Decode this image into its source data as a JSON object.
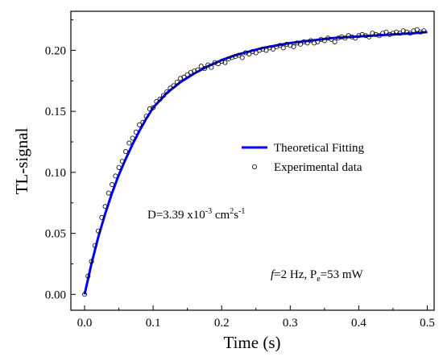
{
  "chart_data": {
    "type": "scatter",
    "xlabel": "Time (s)",
    "ylabel": "TL-signal",
    "xlim": [
      -0.02,
      0.51
    ],
    "ylim": [
      -0.013,
      0.232
    ],
    "x_ticks": [
      0.0,
      0.1,
      0.2,
      0.3,
      0.4,
      0.5
    ],
    "x_tick_labels": [
      "0.0",
      "0.1",
      "0.2",
      "0.3",
      "0.4",
      "0.5"
    ],
    "y_ticks": [
      0.0,
      0.05,
      0.1,
      0.15,
      0.2
    ],
    "y_tick_labels": [
      "0.00",
      "0.05",
      "0.10",
      "0.15",
      "0.20"
    ],
    "grid": false,
    "legend_position": "center-right",
    "series": [
      {
        "name": "Theoretical Fitting",
        "kind": "line",
        "color": "#0000ff",
        "x": [
          0.0,
          0.01,
          0.02,
          0.03,
          0.04,
          0.05,
          0.06,
          0.07,
          0.08,
          0.09,
          0.1,
          0.12,
          0.14,
          0.16,
          0.18,
          0.2,
          0.22,
          0.24,
          0.26,
          0.28,
          0.3,
          0.33,
          0.36,
          0.39,
          0.42,
          0.45,
          0.48,
          0.5
        ],
        "y": [
          0.0,
          0.025,
          0.047,
          0.066,
          0.083,
          0.098,
          0.111,
          0.123,
          0.134,
          0.144,
          0.153,
          0.165,
          0.174,
          0.181,
          0.187,
          0.192,
          0.196,
          0.199,
          0.202,
          0.204,
          0.206,
          0.208,
          0.21,
          0.211,
          0.212,
          0.213,
          0.214,
          0.215
        ]
      },
      {
        "name": "Experimental data",
        "kind": "scatter",
        "color": "#000000",
        "x": [
          0.0,
          0.005,
          0.01,
          0.015,
          0.02,
          0.025,
          0.03,
          0.035,
          0.04,
          0.045,
          0.05,
          0.055,
          0.06,
          0.065,
          0.07,
          0.075,
          0.08,
          0.085,
          0.09,
          0.095,
          0.1,
          0.105,
          0.11,
          0.115,
          0.12,
          0.125,
          0.13,
          0.135,
          0.14,
          0.145,
          0.15,
          0.155,
          0.16,
          0.165,
          0.17,
          0.175,
          0.18,
          0.185,
          0.19,
          0.195,
          0.2,
          0.205,
          0.21,
          0.215,
          0.22,
          0.225,
          0.23,
          0.235,
          0.24,
          0.245,
          0.25,
          0.255,
          0.26,
          0.265,
          0.27,
          0.275,
          0.28,
          0.285,
          0.29,
          0.295,
          0.3,
          0.305,
          0.31,
          0.315,
          0.32,
          0.325,
          0.33,
          0.335,
          0.34,
          0.345,
          0.35,
          0.355,
          0.36,
          0.365,
          0.37,
          0.375,
          0.38,
          0.385,
          0.39,
          0.395,
          0.4,
          0.405,
          0.41,
          0.415,
          0.42,
          0.425,
          0.43,
          0.435,
          0.44,
          0.445,
          0.45,
          0.455,
          0.46,
          0.465,
          0.47,
          0.475,
          0.48,
          0.485,
          0.49,
          0.495
        ],
        "y": [
          0.0,
          0.015,
          0.027,
          0.04,
          0.052,
          0.063,
          0.072,
          0.083,
          0.09,
          0.097,
          0.104,
          0.109,
          0.117,
          0.124,
          0.128,
          0.133,
          0.139,
          0.141,
          0.146,
          0.152,
          0.153,
          0.158,
          0.16,
          0.163,
          0.166,
          0.169,
          0.171,
          0.174,
          0.177,
          0.178,
          0.18,
          0.182,
          0.183,
          0.184,
          0.187,
          0.185,
          0.188,
          0.186,
          0.19,
          0.189,
          0.191,
          0.19,
          0.193,
          0.194,
          0.195,
          0.196,
          0.194,
          0.198,
          0.197,
          0.199,
          0.198,
          0.2,
          0.201,
          0.2,
          0.202,
          0.201,
          0.203,
          0.204,
          0.202,
          0.205,
          0.204,
          0.203,
          0.206,
          0.205,
          0.207,
          0.206,
          0.208,
          0.206,
          0.207,
          0.209,
          0.208,
          0.21,
          0.209,
          0.207,
          0.21,
          0.211,
          0.21,
          0.212,
          0.211,
          0.21,
          0.212,
          0.213,
          0.212,
          0.211,
          0.214,
          0.213,
          0.212,
          0.214,
          0.215,
          0.213,
          0.214,
          0.215,
          0.214,
          0.216,
          0.215,
          0.214,
          0.216,
          0.217,
          0.215,
          0.216
        ]
      }
    ],
    "annotations": {
      "diffusion": {
        "prefix": "D=3.39 x10",
        "exp1": "-3",
        "mid": " cm",
        "exp2": "2",
        "mid2": "s",
        "exp3": "-1"
      },
      "conditions": {
        "f_symbol": "f",
        "f_text": "=2 Hz,  P",
        "p_sub": "e",
        "p_text": "=53 mW"
      }
    }
  }
}
